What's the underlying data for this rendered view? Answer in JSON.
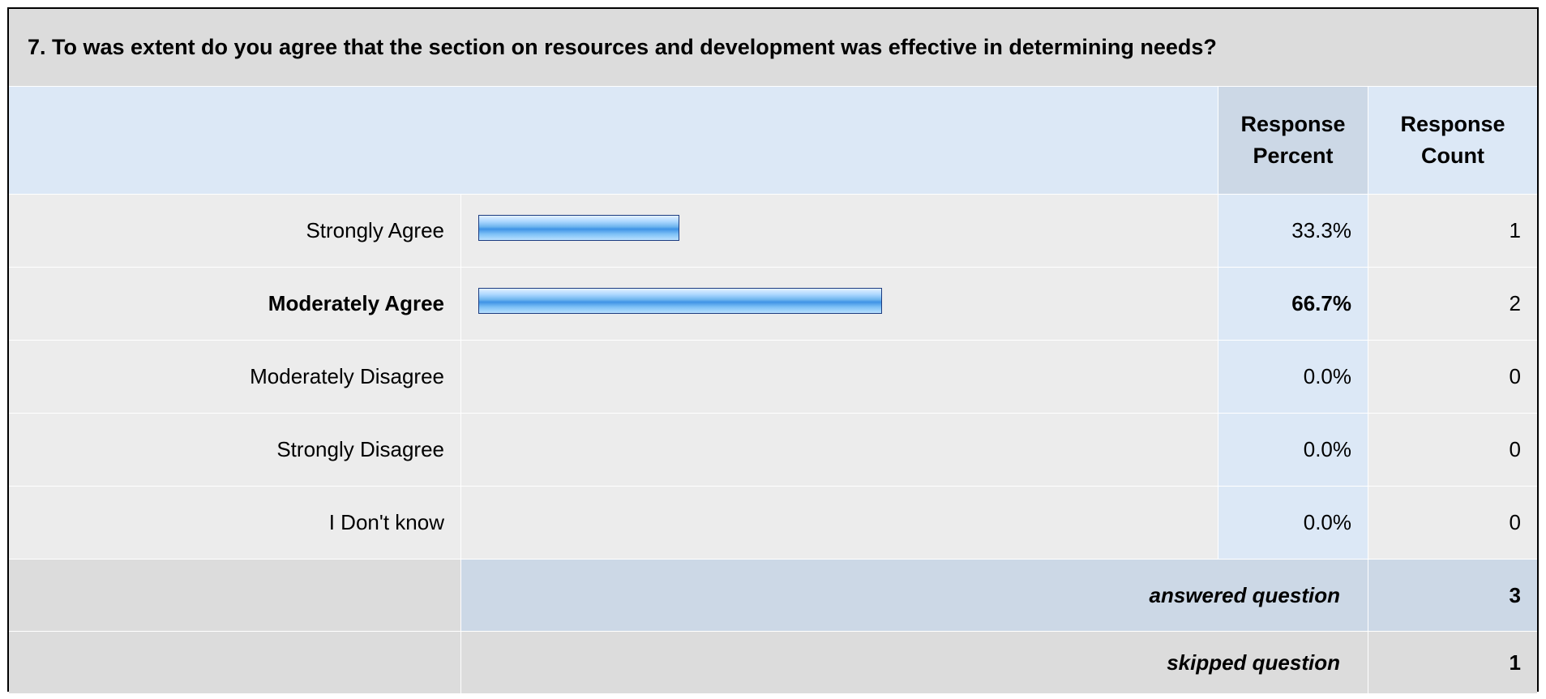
{
  "question": {
    "title": "7. To was extent do you agree that the section on resources and development was effective in determining needs?"
  },
  "header": {
    "percent_line1": "Response",
    "percent_line2": "Percent",
    "count_line1": "Response",
    "count_line2": "Count"
  },
  "rows": [
    {
      "label": "Strongly Agree",
      "percent": "33.3%",
      "count": "1",
      "bold": false
    },
    {
      "label": "Moderately Agree",
      "percent": "66.7%",
      "count": "2",
      "bold": true
    },
    {
      "label": "Moderately Disagree",
      "percent": "0.0%",
      "count": "0",
      "bold": false
    },
    {
      "label": "Strongly Disagree",
      "percent": "0.0%",
      "count": "0",
      "bold": false
    },
    {
      "label": "I Don't know",
      "percent": "0.0%",
      "count": "0",
      "bold": false
    }
  ],
  "footer": {
    "answered_label": "answered question",
    "answered_value": "3",
    "skipped_label": "skipped question",
    "skipped_value": "1"
  },
  "colors": {
    "bar_fill": "#6fb6ee",
    "bar_border": "#1c3c80",
    "header_background": "#dce8f6",
    "row_background": "#ececec"
  },
  "chart_data": {
    "type": "bar",
    "orientation": "horizontal",
    "categories": [
      "Strongly Agree",
      "Moderately Agree",
      "Moderately Disagree",
      "Strongly Disagree",
      "I Don't know"
    ],
    "series": [
      {
        "name": "Response Percent",
        "values": [
          33.3,
          66.7,
          0.0,
          0.0,
          0.0
        ]
      },
      {
        "name": "Response Count",
        "values": [
          1,
          2,
          0,
          0,
          0
        ]
      }
    ],
    "xlim": [
      0,
      100
    ],
    "grid": false,
    "legend": "none"
  }
}
